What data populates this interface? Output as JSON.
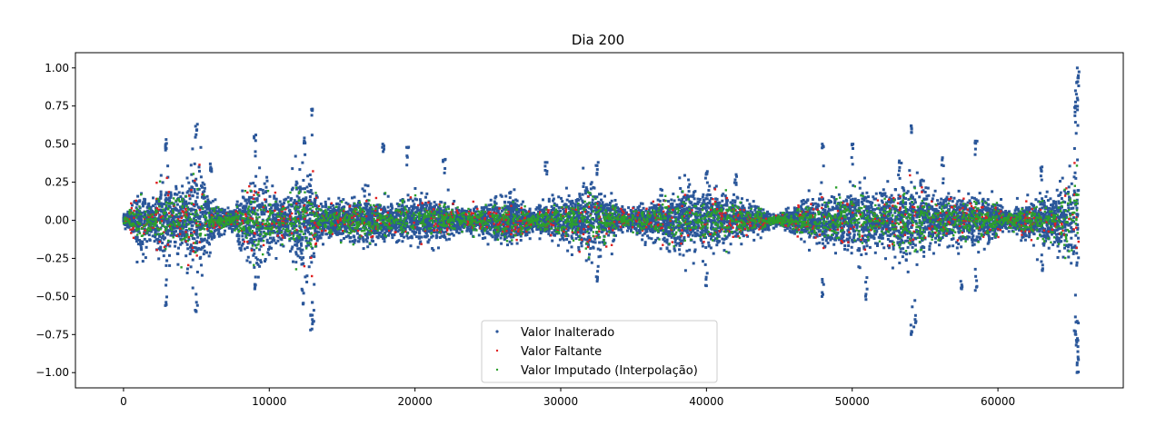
{
  "chart_data": {
    "type": "scatter",
    "title": "Dia 200",
    "xlabel": "",
    "ylabel": "",
    "xlim": [
      -3300,
      68600
    ],
    "ylim": [
      -1.1,
      1.1
    ],
    "x_ticks": [
      0,
      10000,
      20000,
      30000,
      40000,
      50000,
      60000
    ],
    "x_tick_labels": [
      "0",
      "10000",
      "20000",
      "30000",
      "40000",
      "50000",
      "60000"
    ],
    "y_ticks": [
      1.0,
      0.75,
      0.5,
      0.25,
      0.0,
      -0.25,
      -0.5,
      -0.75,
      -1.0
    ],
    "y_tick_labels": [
      "1.00",
      "0.75",
      "0.50",
      "0.25",
      "0.00",
      "−0.25",
      "−0.50",
      "−0.75",
      "−1.00"
    ],
    "grid": false,
    "legend": {
      "placement": "lower-center"
    },
    "x_range": [
      0,
      65536
    ],
    "envelope_x": [
      0,
      800,
      1300,
      2000,
      2800,
      3300,
      4000,
      5000,
      5600,
      6500,
      7500,
      8500,
      9200,
      10000,
      11000,
      12000,
      12800,
      13300,
      14500,
      15500,
      16500,
      17300,
      18500,
      20000,
      21000,
      22000,
      23500,
      25000,
      26500,
      28000,
      29500,
      31000,
      32000,
      33000,
      34500,
      36000,
      37500,
      38500,
      39500,
      40500,
      42000,
      43500,
      45000,
      46500,
      48000,
      49500,
      50500,
      51500,
      52500,
      53500,
      54200,
      55000,
      56000,
      57500,
      58500,
      59500,
      60500,
      61500,
      62500,
      63500,
      64500,
      65000,
      65536
    ],
    "envelope_amp": [
      0.03,
      0.12,
      0.2,
      0.08,
      0.3,
      0.15,
      0.2,
      0.35,
      0.2,
      0.08,
      0.05,
      0.2,
      0.28,
      0.18,
      0.12,
      0.25,
      0.3,
      0.12,
      0.1,
      0.12,
      0.15,
      0.12,
      0.1,
      0.15,
      0.12,
      0.1,
      0.06,
      0.1,
      0.15,
      0.06,
      0.1,
      0.15,
      0.22,
      0.15,
      0.05,
      0.1,
      0.15,
      0.22,
      0.15,
      0.18,
      0.12,
      0.08,
      0.03,
      0.1,
      0.15,
      0.15,
      0.22,
      0.15,
      0.18,
      0.2,
      0.25,
      0.2,
      0.14,
      0.12,
      0.15,
      0.13,
      0.05,
      0.08,
      0.12,
      0.15,
      0.2,
      0.3,
      0.35
    ],
    "series": [
      {
        "name": "Valor Inalterado",
        "color": "#2b579a",
        "n_points": 9000,
        "marker_size": 3
      },
      {
        "name": "Valor Faltante",
        "color": "#e02020",
        "n_points": 900,
        "marker_size": 2.4
      },
      {
        "name": "Valor Imputado (Interpolação)",
        "color": "#2ca02c",
        "n_points": 2600,
        "marker_size": 2.4
      }
    ],
    "outliers": [
      [
        5000,
        0.63
      ],
      [
        5000,
        -0.6
      ],
      [
        12900,
        0.73
      ],
      [
        12900,
        -0.72
      ],
      [
        12300,
        -0.55
      ],
      [
        12400,
        0.54
      ],
      [
        9000,
        0.56
      ],
      [
        9000,
        -0.45
      ],
      [
        17800,
        0.5
      ],
      [
        19500,
        0.48
      ],
      [
        22000,
        0.4
      ],
      [
        29000,
        0.38
      ],
      [
        32500,
        0.38
      ],
      [
        32500,
        -0.4
      ],
      [
        48000,
        0.5
      ],
      [
        48000,
        -0.5
      ],
      [
        50000,
        0.5
      ],
      [
        51000,
        -0.52
      ],
      [
        54100,
        0.62
      ],
      [
        54100,
        -0.75
      ],
      [
        56200,
        0.41
      ],
      [
        57500,
        -0.45
      ],
      [
        58500,
        0.52
      ],
      [
        58500,
        -0.46
      ],
      [
        65500,
        1.0
      ],
      [
        65500,
        -1.0
      ],
      [
        65400,
        0.85
      ],
      [
        65400,
        -0.82
      ],
      [
        65300,
        0.75
      ],
      [
        65300,
        -0.75
      ],
      [
        65450,
        0.95
      ],
      [
        65450,
        -0.95
      ],
      [
        2900,
        0.53
      ],
      [
        2900,
        -0.56
      ],
      [
        6000,
        0.37
      ],
      [
        13000,
        -0.68
      ],
      [
        53300,
        0.39
      ],
      [
        54300,
        -0.7
      ],
      [
        40000,
        0.32
      ],
      [
        40000,
        -0.43
      ],
      [
        42000,
        0.3
      ],
      [
        63000,
        0.35
      ],
      [
        63000,
        -0.33
      ]
    ]
  }
}
